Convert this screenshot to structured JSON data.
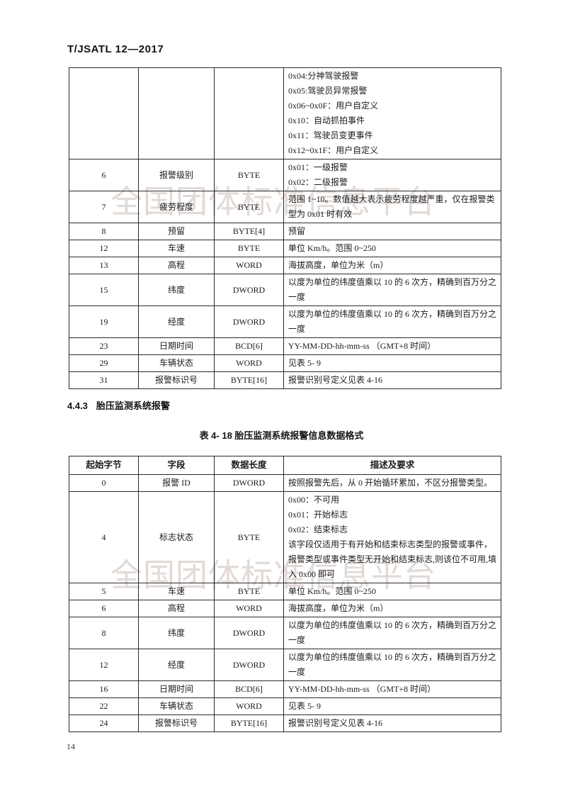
{
  "page": {
    "header": "T/JSATL 12—2017",
    "page_number": "14",
    "watermark": "全国团体标准信息平台"
  },
  "colors": {
    "text": "#1b1b1b",
    "table_border": "#2b2b2b",
    "watermark": "#e2dad6",
    "background": "#ffffff"
  },
  "section": {
    "heading_number": "4.4.3",
    "heading_text": "胎压监测系统报警",
    "table2_caption": "表 4- 18 胎压监测系统报警信息数据格式"
  },
  "table1": {
    "note": "continuation of previous-page table, no header row visible",
    "rows": [
      {
        "start": "",
        "field": "",
        "len": "",
        "desc": [
          "0x04:分神驾驶报警",
          "0x05:驾驶员异常报警",
          "0x06~0x0F：用户自定义",
          "0x10：自动抓拍事件",
          "0x11：驾驶员变更事件",
          "0x12~0x1F：用户自定义"
        ]
      },
      {
        "start": "6",
        "field": "报警级别",
        "len": "BYTE",
        "desc": [
          "0x01：一级报警",
          "0x02：二级报警"
        ]
      },
      {
        "start": "7",
        "field": "疲劳程度",
        "len": "BYTE",
        "desc": [
          "范围 1~10。数值越大表示疲劳程度越严重，仅在报警类型为 0x01 时有效"
        ]
      },
      {
        "start": "8",
        "field": "预留",
        "len": "BYTE[4]",
        "desc": [
          "预留"
        ]
      },
      {
        "start": "12",
        "field": "车速",
        "len": "BYTE",
        "desc": [
          "单位 Km/h。范围 0~250"
        ]
      },
      {
        "start": "13",
        "field": "高程",
        "len": "WORD",
        "desc": [
          "海拔高度，单位为米（m）"
        ]
      },
      {
        "start": "15",
        "field": "纬度",
        "len": "DWORD",
        "desc": [
          "以度为单位的纬度值乘以 10 的 6 次方，精确到百万分之一度"
        ]
      },
      {
        "start": "19",
        "field": "经度",
        "len": "DWORD",
        "desc": [
          "以度为单位的纬度值乘以 10 的 6 次方，精确到百万分之一度"
        ]
      },
      {
        "start": "23",
        "field": "日期时间",
        "len": "BCD[6]",
        "desc": [
          "YY-MM-DD-hh-mm-ss （GMT+8 时间）"
        ]
      },
      {
        "start": "29",
        "field": "车辆状态",
        "len": "WORD",
        "desc": [
          "见表 5- 9"
        ]
      },
      {
        "start": "31",
        "field": "报警标识号",
        "len": "BYTE[16]",
        "desc": [
          "报警识别号定义见表 4-16"
        ]
      }
    ]
  },
  "table2": {
    "headers": [
      "起始字节",
      "字段",
      "数据长度",
      "描述及要求"
    ],
    "rows": [
      {
        "start": "0",
        "field": "报警 ID",
        "len": "DWORD",
        "desc": [
          "按照报警先后，从 0 开始循环累加，不区分报警类型。"
        ]
      },
      {
        "start": "4",
        "field": "标志状态",
        "len": "BYTE",
        "desc": [
          "0x00：不可用",
          "0x01：开始标志",
          "0x02：结束标志",
          "该字段仅适用于有开始和结束标志类型的报警或事件，报警类型或事件类型无开始和结束标志,则该位不可用,填入 0x00 即可"
        ]
      },
      {
        "start": "5",
        "field": "车速",
        "len": "BYTE",
        "desc": [
          "单位 Km/h。范围 0~250"
        ]
      },
      {
        "start": "6",
        "field": "高程",
        "len": "WORD",
        "desc": [
          "海拔高度，单位为米（m）"
        ]
      },
      {
        "start": "8",
        "field": "纬度",
        "len": "DWORD",
        "desc": [
          "以度为单位的纬度值乘以 10 的 6 次方，精确到百万分之一度"
        ]
      },
      {
        "start": "12",
        "field": "经度",
        "len": "DWORD",
        "desc": [
          "以度为单位的纬度值乘以 10 的 6 次方，精确到百万分之一度"
        ]
      },
      {
        "start": "16",
        "field": "日期时间",
        "len": "BCD[6]",
        "desc": [
          "YY-MM-DD-hh-mm-ss （GMT+8 时间）"
        ]
      },
      {
        "start": "22",
        "field": "车辆状态",
        "len": "WORD",
        "desc": [
          "见表 5- 9"
        ]
      },
      {
        "start": "24",
        "field": "报警标识号",
        "len": "BYTE[16]",
        "desc": [
          "报警识别号定义见表 4-16"
        ]
      }
    ]
  }
}
